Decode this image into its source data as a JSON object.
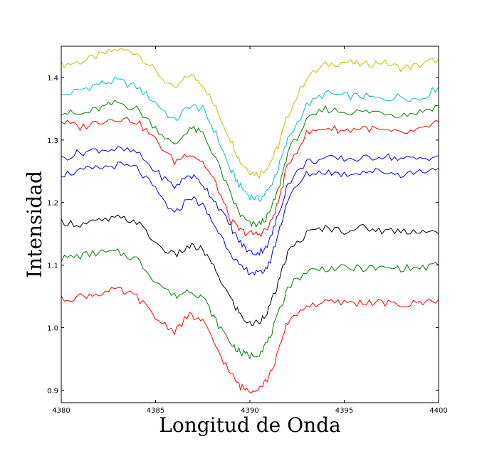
{
  "chart_data": {
    "type": "line",
    "title": "",
    "xlabel": "Longitud de Onda",
    "ylabel": "Intensidad",
    "xlim": [
      4380,
      4400
    ],
    "ylim": [
      0.88,
      1.45
    ],
    "xticks": [
      4380,
      4385,
      4390,
      4395,
      4400
    ],
    "xtick_labels": [
      "4380",
      "4385",
      "4390",
      "4395",
      "4400"
    ],
    "yticks": [
      0.9,
      1.0,
      1.1,
      1.2,
      1.3,
      1.4
    ],
    "ytick_labels": [
      "0.9",
      "1.0",
      "1.1",
      "1.2",
      "1.3",
      "1.4"
    ],
    "grid": false,
    "legend": false,
    "x": [
      4380,
      4381,
      4382,
      4383,
      4384,
      4385,
      4386,
      4386.8,
      4387.5,
      4388.2,
      4389,
      4389.5,
      4390,
      4390.5,
      4391,
      4391.5,
      4392,
      4393,
      4394,
      4395,
      4396,
      4397,
      4398,
      4399,
      4400
    ],
    "series": [
      {
        "color": "#bfbf00",
        "values": [
          1.42,
          1.425,
          1.435,
          1.445,
          1.44,
          1.41,
          1.38,
          1.405,
          1.39,
          1.35,
          1.3,
          1.265,
          1.25,
          1.245,
          1.26,
          1.29,
          1.34,
          1.4,
          1.42,
          1.425,
          1.42,
          1.425,
          1.415,
          1.42,
          1.43
        ]
      },
      {
        "color": "#00bfbf",
        "values": [
          1.37,
          1.38,
          1.39,
          1.395,
          1.385,
          1.36,
          1.33,
          1.355,
          1.35,
          1.31,
          1.25,
          1.225,
          1.21,
          1.205,
          1.22,
          1.255,
          1.3,
          1.355,
          1.375,
          1.37,
          1.37,
          1.365,
          1.37,
          1.365,
          1.385
        ]
      },
      {
        "color": "#008000",
        "values": [
          1.345,
          1.34,
          1.35,
          1.36,
          1.35,
          1.32,
          1.29,
          1.32,
          1.31,
          1.27,
          1.21,
          1.18,
          1.165,
          1.165,
          1.18,
          1.22,
          1.28,
          1.33,
          1.35,
          1.345,
          1.345,
          1.345,
          1.34,
          1.345,
          1.355
        ]
      },
      {
        "color": "#ff0000",
        "values": [
          1.33,
          1.32,
          1.33,
          1.335,
          1.33,
          1.3,
          1.265,
          1.28,
          1.265,
          1.23,
          1.17,
          1.155,
          1.15,
          1.15,
          1.16,
          1.2,
          1.26,
          1.31,
          1.32,
          1.315,
          1.32,
          1.315,
          1.31,
          1.315,
          1.33
        ]
      },
      {
        "color": "#0000ff",
        "values": [
          1.27,
          1.28,
          1.285,
          1.285,
          1.28,
          1.25,
          1.225,
          1.245,
          1.23,
          1.2,
          1.16,
          1.135,
          1.12,
          1.12,
          1.135,
          1.18,
          1.23,
          1.265,
          1.27,
          1.27,
          1.27,
          1.275,
          1.27,
          1.27,
          1.275
        ]
      },
      {
        "color": "#0000ff",
        "values": [
          1.245,
          1.25,
          1.255,
          1.26,
          1.255,
          1.22,
          1.18,
          1.21,
          1.195,
          1.16,
          1.12,
          1.095,
          1.09,
          1.085,
          1.1,
          1.15,
          1.205,
          1.245,
          1.25,
          1.245,
          1.25,
          1.25,
          1.245,
          1.25,
          1.255
        ]
      },
      {
        "color": "#000000",
        "values": [
          1.17,
          1.165,
          1.17,
          1.175,
          1.17,
          1.135,
          1.115,
          1.13,
          1.125,
          1.09,
          1.045,
          1.02,
          1.005,
          1.01,
          1.03,
          1.07,
          1.12,
          1.15,
          1.16,
          1.155,
          1.16,
          1.155,
          1.155,
          1.155,
          1.15
        ]
      },
      {
        "color": "#008000",
        "values": [
          1.11,
          1.115,
          1.12,
          1.12,
          1.11,
          1.075,
          1.05,
          1.06,
          1.05,
          1.01,
          0.975,
          0.96,
          0.955,
          0.96,
          0.98,
          1.02,
          1.065,
          1.09,
          1.095,
          1.095,
          1.095,
          1.095,
          1.095,
          1.095,
          1.1
        ]
      },
      {
        "color": "#ff0000",
        "values": [
          1.045,
          1.05,
          1.055,
          1.06,
          1.05,
          1.015,
          0.995,
          1.02,
          1.01,
          0.97,
          0.925,
          0.905,
          0.9,
          0.905,
          0.92,
          0.96,
          1.01,
          1.035,
          1.04,
          1.04,
          1.04,
          1.04,
          1.035,
          1.04,
          1.045
        ]
      }
    ]
  }
}
